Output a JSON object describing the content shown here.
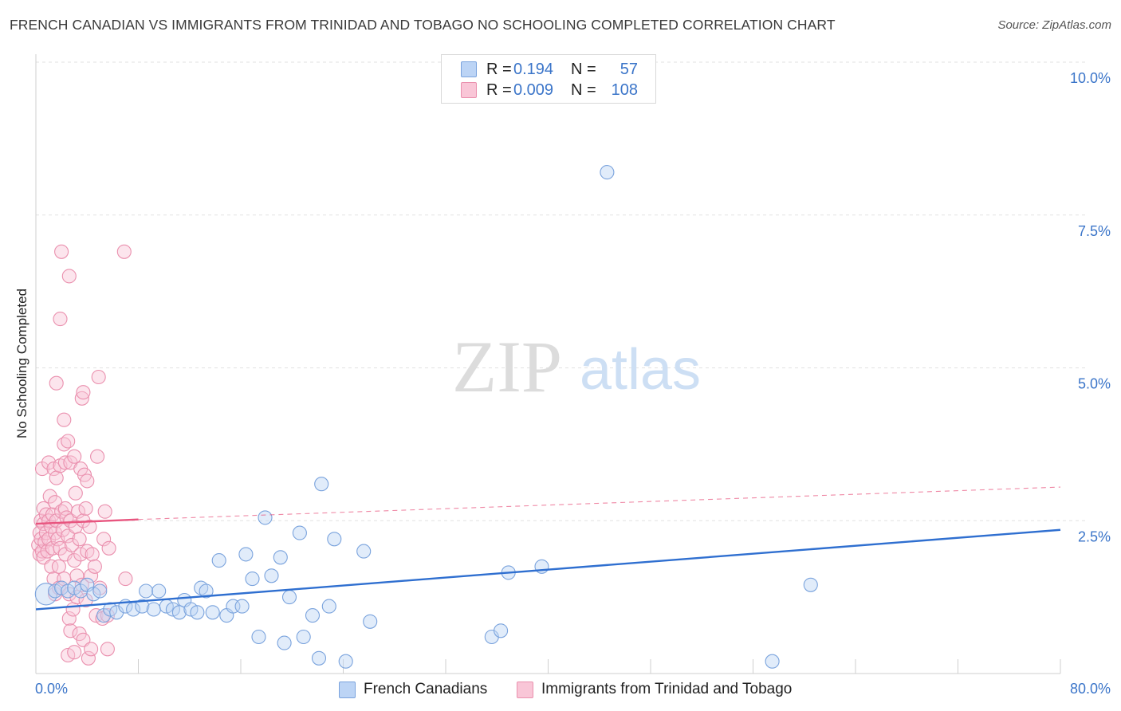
{
  "header": {
    "title": "FRENCH CANADIAN VS IMMIGRANTS FROM TRINIDAD AND TOBAGO NO SCHOOLING COMPLETED CORRELATION CHART",
    "source": "Source: ZipAtlas.com"
  },
  "watermark": {
    "zip": "ZIP",
    "atlas": "atlas"
  },
  "legend": {
    "rows": [
      {
        "r_label": "R =",
        "r_value": "0.194",
        "n_label": "N =",
        "n_value": "57",
        "color": "#bcd4f5"
      },
      {
        "r_label": "R =",
        "r_value": "0.009",
        "n_label": "N =",
        "n_value": "108",
        "color": "#f9c6d7"
      }
    ]
  },
  "bottom_legend": {
    "items": [
      {
        "label": "French Canadians",
        "color": "#bcd4f5"
      },
      {
        "label": "Immigrants from Trinidad and Tobago",
        "color": "#f9c6d7"
      }
    ]
  },
  "chart_data": {
    "type": "scatter",
    "title": "FRENCH CANADIAN VS IMMIGRANTS FROM TRINIDAD AND TOBAGO NO SCHOOLING COMPLETED CORRELATION CHART",
    "xlabel": "",
    "ylabel": "No Schooling Completed",
    "xlim": [
      0,
      80
    ],
    "ylim": [
      0,
      10
    ],
    "x_tick_labels": [
      "0.0%",
      "80.0%"
    ],
    "y_ticks": [
      2.5,
      5.0,
      7.5,
      10.0
    ],
    "y_tick_labels": [
      "2.5%",
      "5.0%",
      "7.5%",
      "10.0%"
    ],
    "grid": true,
    "series": [
      {
        "name": "French Canadians",
        "color": "#7aa3dd",
        "fill": "#bcd4f5",
        "line_color": "#2f6fd0",
        "trend": {
          "x": [
            0,
            80
          ],
          "y": [
            1.05,
            2.35
          ],
          "style": "solid"
        },
        "points": [
          [
            0.8,
            1.3,
            1.6
          ],
          [
            1.5,
            1.35,
            1
          ],
          [
            2,
            1.4,
            1
          ],
          [
            2.5,
            1.35,
            1
          ],
          [
            3,
            1.4,
            1
          ],
          [
            3.5,
            1.35,
            1
          ],
          [
            4,
            1.45,
            1
          ],
          [
            4.5,
            1.3,
            1
          ],
          [
            5,
            1.35,
            1
          ],
          [
            5.3,
            0.95,
            1
          ],
          [
            5.8,
            1.05,
            1
          ],
          [
            6.3,
            1.0,
            1
          ],
          [
            7,
            1.1,
            1
          ],
          [
            7.6,
            1.05,
            1
          ],
          [
            8.3,
            1.1,
            1
          ],
          [
            8.6,
            1.35,
            1
          ],
          [
            9.2,
            1.05,
            1
          ],
          [
            9.6,
            1.35,
            1
          ],
          [
            10.2,
            1.1,
            1
          ],
          [
            10.7,
            1.05,
            1
          ],
          [
            11.2,
            1.0,
            1
          ],
          [
            11.6,
            1.2,
            1
          ],
          [
            12.1,
            1.05,
            1
          ],
          [
            12.6,
            1.0,
            1
          ],
          [
            12.9,
            1.4,
            1
          ],
          [
            13.3,
            1.35,
            1
          ],
          [
            13.8,
            1.0,
            1
          ],
          [
            14.3,
            1.85,
            1
          ],
          [
            14.9,
            0.95,
            1
          ],
          [
            15.4,
            1.1,
            1
          ],
          [
            16.1,
            1.1,
            1
          ],
          [
            16.4,
            1.95,
            1
          ],
          [
            16.9,
            1.55,
            1
          ],
          [
            17.4,
            0.6,
            1
          ],
          [
            17.9,
            2.55,
            1
          ],
          [
            18.4,
            1.6,
            1
          ],
          [
            19.1,
            1.9,
            1
          ],
          [
            19.4,
            0.5,
            1
          ],
          [
            19.8,
            1.25,
            1
          ],
          [
            20.6,
            2.3,
            1
          ],
          [
            20.9,
            0.6,
            1
          ],
          [
            21.6,
            0.95,
            1
          ],
          [
            22.1,
            0.25,
            1
          ],
          [
            22.3,
            3.1,
            1
          ],
          [
            22.9,
            1.1,
            1
          ],
          [
            23.3,
            2.2,
            1
          ],
          [
            24.2,
            0.2,
            1
          ],
          [
            25.6,
            2.0,
            1
          ],
          [
            26.1,
            0.85,
            1
          ],
          [
            35.6,
            0.6,
            1
          ],
          [
            36.3,
            0.7,
            1
          ],
          [
            36.9,
            1.65,
            1
          ],
          [
            39.5,
            1.75,
            1
          ],
          [
            44.6,
            8.2,
            1
          ],
          [
            57.5,
            0.2,
            1
          ],
          [
            60.5,
            1.45,
            1
          ]
        ]
      },
      {
        "name": "Immigrants from Trinidad and Tobago",
        "color": "#ea90ae",
        "fill": "#f9c6d7",
        "line_color": "#e8557f",
        "trend": {
          "x": [
            0,
            8
          ],
          "y": [
            2.45,
            2.52
          ],
          "style": "solid",
          "extension": {
            "x": [
              8,
              80
            ],
            "y": [
              2.52,
              3.05
            ],
            "style": "dashed"
          }
        },
        "points": [
          [
            0.2,
            2.1,
            1
          ],
          [
            0.3,
            2.3,
            1
          ],
          [
            0.3,
            1.95,
            1
          ],
          [
            0.4,
            2.5,
            1
          ],
          [
            0.4,
            2.2,
            1
          ],
          [
            0.5,
            3.35,
            1
          ],
          [
            0.5,
            2.0,
            1
          ],
          [
            0.6,
            2.7,
            1
          ],
          [
            0.6,
            2.45,
            1
          ],
          [
            0.6,
            1.9,
            1
          ],
          [
            0.7,
            2.15,
            1
          ],
          [
            0.8,
            2.6,
            1
          ],
          [
            0.8,
            2.3,
            1
          ],
          [
            0.9,
            2.0,
            1
          ],
          [
            1.0,
            3.45,
            1
          ],
          [
            1.0,
            2.5,
            1
          ],
          [
            1.0,
            2.2,
            1
          ],
          [
            1.1,
            2.9,
            1
          ],
          [
            1.2,
            2.4,
            1
          ],
          [
            1.2,
            1.75,
            1
          ],
          [
            1.3,
            2.6,
            1
          ],
          [
            1.3,
            2.05,
            1
          ],
          [
            1.4,
            3.35,
            1
          ],
          [
            1.4,
            1.55,
            1
          ],
          [
            1.5,
            2.8,
            1
          ],
          [
            1.5,
            2.3,
            1
          ],
          [
            1.5,
            1.3,
            1
          ],
          [
            1.6,
            4.75,
            1
          ],
          [
            1.6,
            3.2,
            1
          ],
          [
            1.6,
            2.5,
            1
          ],
          [
            1.7,
            2.2,
            1
          ],
          [
            1.8,
            1.75,
            1
          ],
          [
            1.8,
            1.4,
            1
          ],
          [
            1.9,
            5.8,
            1
          ],
          [
            1.9,
            3.4,
            1
          ],
          [
            1.9,
            2.05,
            1
          ],
          [
            2.0,
            6.9,
            1
          ],
          [
            2.0,
            2.65,
            1
          ],
          [
            2.1,
            2.35,
            1
          ],
          [
            2.2,
            4.15,
            1
          ],
          [
            2.2,
            3.75,
            1
          ],
          [
            2.2,
            1.55,
            1
          ],
          [
            2.3,
            3.45,
            1
          ],
          [
            2.3,
            2.7,
            1
          ],
          [
            2.3,
            1.95,
            1
          ],
          [
            2.4,
            2.55,
            1
          ],
          [
            2.5,
            3.8,
            1
          ],
          [
            2.5,
            2.25,
            1
          ],
          [
            2.5,
            0.3,
            1
          ],
          [
            2.6,
            6.5,
            1
          ],
          [
            2.6,
            1.3,
            1
          ],
          [
            2.6,
            0.9,
            1
          ],
          [
            2.7,
            3.45,
            1
          ],
          [
            2.7,
            2.5,
            1
          ],
          [
            2.7,
            0.7,
            1
          ],
          [
            2.8,
            2.1,
            1
          ],
          [
            2.9,
            1.05,
            1
          ],
          [
            3.0,
            3.55,
            1
          ],
          [
            3.0,
            1.85,
            1
          ],
          [
            3.0,
            0.35,
            1
          ],
          [
            3.1,
            2.95,
            1
          ],
          [
            3.1,
            2.4,
            1
          ],
          [
            3.2,
            1.6,
            1
          ],
          [
            3.2,
            1.25,
            1
          ],
          [
            3.3,
            2.65,
            1
          ],
          [
            3.4,
            2.2,
            1
          ],
          [
            3.4,
            0.65,
            1
          ],
          [
            3.5,
            3.35,
            1
          ],
          [
            3.5,
            1.95,
            1
          ],
          [
            3.6,
            4.5,
            1
          ],
          [
            3.6,
            1.45,
            1
          ],
          [
            3.7,
            4.6,
            1
          ],
          [
            3.7,
            2.5,
            1
          ],
          [
            3.7,
            0.55,
            1
          ],
          [
            3.8,
            3.25,
            1
          ],
          [
            3.9,
            2.7,
            1
          ],
          [
            3.9,
            1.2,
            1
          ],
          [
            4.0,
            3.15,
            1
          ],
          [
            4.0,
            2.0,
            1
          ],
          [
            4.1,
            0.25,
            1
          ],
          [
            4.2,
            2.4,
            1
          ],
          [
            4.3,
            1.6,
            1
          ],
          [
            4.3,
            0.4,
            1
          ],
          [
            4.4,
            1.95,
            1
          ],
          [
            4.6,
            1.75,
            1
          ],
          [
            4.7,
            0.95,
            1
          ],
          [
            4.8,
            3.55,
            1
          ],
          [
            4.9,
            4.85,
            1
          ],
          [
            5.0,
            1.4,
            1
          ],
          [
            5.2,
            0.9,
            1
          ],
          [
            5.3,
            2.2,
            1
          ],
          [
            5.4,
            2.65,
            1
          ],
          [
            5.6,
            0.95,
            1
          ],
          [
            5.6,
            0.4,
            1
          ],
          [
            5.7,
            2.05,
            1
          ],
          [
            7.0,
            1.55,
            1
          ],
          [
            6.9,
            6.9,
            1
          ]
        ]
      }
    ]
  }
}
